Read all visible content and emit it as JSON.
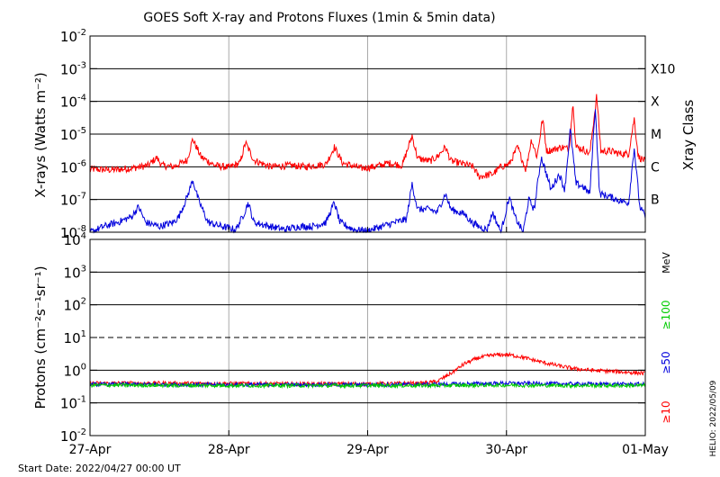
{
  "chart_data": [
    {
      "type": "line",
      "panel": "xray",
      "title": "GOES Soft X-ray and Protons Fluxes   (1min & 5min data)",
      "ylabel": "X-rays (Watts m⁻²)",
      "y_scale": "log",
      "ylim": [
        1e-08,
        0.01
      ],
      "y_ticks": [
        {
          "base": "10",
          "exp": "-8"
        },
        {
          "base": "10",
          "exp": "-7"
        },
        {
          "base": "10",
          "exp": "-6"
        },
        {
          "base": "10",
          "exp": "-5"
        },
        {
          "base": "10",
          "exp": "-4"
        },
        {
          "base": "10",
          "exp": "-3"
        },
        {
          "base": "10",
          "exp": "-2"
        }
      ],
      "right_axis_title": "Xray Class",
      "class_labels": [
        {
          "label": "B",
          "value": 1e-07
        },
        {
          "label": "C",
          "value": 1e-06
        },
        {
          "label": "M",
          "value": 1e-05
        },
        {
          "label": "X",
          "value": 0.0001
        },
        {
          "label": "X10",
          "value": 0.001
        }
      ],
      "x_days_range": [
        0,
        4
      ],
      "series": [
        {
          "color": "#ff0000",
          "points": [
            [
              0.0,
              8.5e-07
            ],
            [
              0.15,
              8e-07
            ],
            [
              0.3,
              9e-07
            ],
            [
              0.42,
              1.1e-06
            ],
            [
              0.48,
              1.9e-06
            ],
            [
              0.52,
              1.1e-06
            ],
            [
              0.6,
              1e-06
            ],
            [
              0.7,
              1.6e-06
            ],
            [
              0.74,
              7e-06
            ],
            [
              0.8,
              2e-06
            ],
            [
              0.9,
              1.1e-06
            ],
            [
              1.0,
              9.5e-07
            ],
            [
              1.08,
              1.3e-06
            ],
            [
              1.12,
              5.5e-06
            ],
            [
              1.18,
              1.6e-06
            ],
            [
              1.3,
              1e-06
            ],
            [
              1.45,
              1.1e-06
            ],
            [
              1.55,
              1e-06
            ],
            [
              1.7,
              1.2e-06
            ],
            [
              1.76,
              4e-06
            ],
            [
              1.82,
              1.3e-06
            ],
            [
              1.95,
              9e-07
            ],
            [
              2.05,
              1e-06
            ],
            [
              2.15,
              1.3e-06
            ],
            [
              2.25,
              1.1e-06
            ],
            [
              2.32,
              9e-06
            ],
            [
              2.36,
              1.8e-06
            ],
            [
              2.45,
              1.5e-06
            ],
            [
              2.5,
              2e-06
            ],
            [
              2.56,
              4e-06
            ],
            [
              2.6,
              1.5e-06
            ],
            [
              2.7,
              1.2e-06
            ],
            [
              2.76,
              1e-06
            ],
            [
              2.8,
              5e-07
            ],
            [
              2.9,
              6e-07
            ],
            [
              2.96,
              1e-06
            ],
            [
              3.02,
              1.2e-06
            ],
            [
              3.08,
              4e-06
            ],
            [
              3.14,
              8e-07
            ],
            [
              3.18,
              7e-06
            ],
            [
              3.22,
              2e-06
            ],
            [
              3.26,
              3e-05
            ],
            [
              3.29,
              3e-06
            ],
            [
              3.35,
              3.5e-06
            ],
            [
              3.4,
              4e-06
            ],
            [
              3.45,
              3.5e-06
            ],
            [
              3.48,
              9e-05
            ],
            [
              3.5,
              4e-06
            ],
            [
              3.55,
              3.5e-06
            ],
            [
              3.6,
              2.5e-06
            ],
            [
              3.65,
              0.00015
            ],
            [
              3.68,
              3e-06
            ],
            [
              3.75,
              3e-06
            ],
            [
              3.82,
              2.5e-06
            ],
            [
              3.88,
              2.5e-06
            ],
            [
              3.92,
              3e-05
            ],
            [
              3.95,
              2e-06
            ],
            [
              4.0,
              1.5e-06
            ]
          ]
        },
        {
          "color": "#0000dd",
          "points": [
            [
              0.0,
              1e-08
            ],
            [
              0.1,
              1.5e-08
            ],
            [
              0.2,
              2e-08
            ],
            [
              0.3,
              3e-08
            ],
            [
              0.35,
              6e-08
            ],
            [
              0.4,
              2e-08
            ],
            [
              0.5,
              1.5e-08
            ],
            [
              0.6,
              2e-08
            ],
            [
              0.64,
              3e-08
            ],
            [
              0.7,
              1.2e-07
            ],
            [
              0.74,
              4e-07
            ],
            [
              0.78,
              1e-07
            ],
            [
              0.85,
              2e-08
            ],
            [
              0.95,
              1.5e-08
            ],
            [
              1.05,
              1.2e-08
            ],
            [
              1.1,
              3e-08
            ],
            [
              1.14,
              8e-08
            ],
            [
              1.18,
              2e-08
            ],
            [
              1.3,
              1.5e-08
            ],
            [
              1.4,
              1.2e-08
            ],
            [
              1.5,
              1.5e-08
            ],
            [
              1.6,
              1.5e-08
            ],
            [
              1.7,
              2e-08
            ],
            [
              1.76,
              8e-08
            ],
            [
              1.8,
              2e-08
            ],
            [
              1.9,
              1.2e-08
            ],
            [
              2.0,
              1.1e-08
            ],
            [
              2.1,
              1.5e-08
            ],
            [
              2.2,
              2e-08
            ],
            [
              2.28,
              2.5e-08
            ],
            [
              2.32,
              3e-07
            ],
            [
              2.36,
              5e-08
            ],
            [
              2.45,
              5e-08
            ],
            [
              2.5,
              4e-08
            ],
            [
              2.56,
              1.5e-07
            ],
            [
              2.6,
              5e-08
            ],
            [
              2.7,
              3.5e-08
            ],
            [
              2.75,
              2e-08
            ],
            [
              2.8,
              1.5e-08
            ],
            [
              2.86,
              1.2e-08
            ],
            [
              2.9,
              4e-08
            ],
            [
              2.96,
              1e-08
            ],
            [
              3.02,
              1.2e-07
            ],
            [
              3.06,
              3e-08
            ],
            [
              3.12,
              1e-08
            ],
            [
              3.16,
              1e-07
            ],
            [
              3.2,
              5e-08
            ],
            [
              3.25,
              2e-06
            ],
            [
              3.28,
              8e-07
            ],
            [
              3.32,
              2e-07
            ],
            [
              3.38,
              6e-07
            ],
            [
              3.42,
              2e-07
            ],
            [
              3.46,
              1.5e-05
            ],
            [
              3.5,
              3e-07
            ],
            [
              3.55,
              2.5e-07
            ],
            [
              3.6,
              1.5e-07
            ],
            [
              3.64,
              7e-05
            ],
            [
              3.67,
              1.5e-07
            ],
            [
              3.75,
              1.2e-07
            ],
            [
              3.82,
              9e-08
            ],
            [
              3.88,
              8e-08
            ],
            [
              3.92,
              4e-06
            ],
            [
              3.96,
              6e-08
            ],
            [
              4.0,
              3e-08
            ]
          ]
        }
      ]
    },
    {
      "type": "line",
      "panel": "protons",
      "ylabel": "Protons (cm⁻²s⁻¹sr⁻¹)",
      "y_scale": "log",
      "ylim": [
        0.01,
        10000
      ],
      "y_ticks": [
        {
          "base": "10",
          "exp": "-2"
        },
        {
          "base": "10",
          "exp": "-1"
        },
        {
          "base": "10",
          "exp": "0"
        },
        {
          "base": "10",
          "exp": "1"
        },
        {
          "base": "10",
          "exp": "2"
        },
        {
          "base": "10",
          "exp": "3"
        },
        {
          "base": "10",
          "exp": "4"
        }
      ],
      "threshold_value": 10,
      "unit_label": "MeV",
      "energy_labels": [
        {
          "text": "≥100",
          "color": "#00cc00"
        },
        {
          "text": "≥50",
          "color": "#0000dd"
        },
        {
          "text": "≥10",
          "color": "#ff0000"
        }
      ],
      "x_days_range": [
        0,
        4
      ],
      "x_tick_labels": [
        "27-Apr",
        "28-Apr",
        "29-Apr",
        "30-Apr",
        "01-May"
      ],
      "series": [
        {
          "color": "#ff0000",
          "points": [
            [
              0.0,
              0.4
            ],
            [
              0.5,
              0.4
            ],
            [
              1.0,
              0.39
            ],
            [
              1.5,
              0.38
            ],
            [
              2.0,
              0.38
            ],
            [
              2.4,
              0.4
            ],
            [
              2.5,
              0.45
            ],
            [
              2.6,
              0.8
            ],
            [
              2.7,
              1.6
            ],
            [
              2.8,
              2.4
            ],
            [
              2.9,
              2.9
            ],
            [
              3.0,
              3.0
            ],
            [
              3.1,
              2.6
            ],
            [
              3.2,
              2.0
            ],
            [
              3.3,
              1.6
            ],
            [
              3.4,
              1.3
            ],
            [
              3.5,
              1.1
            ],
            [
              3.6,
              1.0
            ],
            [
              3.7,
              0.95
            ],
            [
              3.8,
              0.9
            ],
            [
              3.9,
              0.85
            ],
            [
              4.0,
              0.8
            ]
          ]
        },
        {
          "color": "#0000dd",
          "points": [
            [
              0.0,
              0.37
            ],
            [
              1.0,
              0.36
            ],
            [
              2.0,
              0.36
            ],
            [
              2.5,
              0.37
            ],
            [
              3.0,
              0.4
            ],
            [
              3.5,
              0.38
            ],
            [
              4.0,
              0.37
            ]
          ]
        },
        {
          "color": "#00cc00",
          "points": [
            [
              0.0,
              0.35
            ],
            [
              1.0,
              0.34
            ],
            [
              2.0,
              0.34
            ],
            [
              2.5,
              0.34
            ],
            [
              3.0,
              0.35
            ],
            [
              3.5,
              0.34
            ],
            [
              4.0,
              0.34
            ]
          ]
        }
      ]
    }
  ],
  "footer": {
    "start_date": "Start Date: 2022/04/27 00:00 UT",
    "credit": "HELIO: 2022/05/09"
  }
}
